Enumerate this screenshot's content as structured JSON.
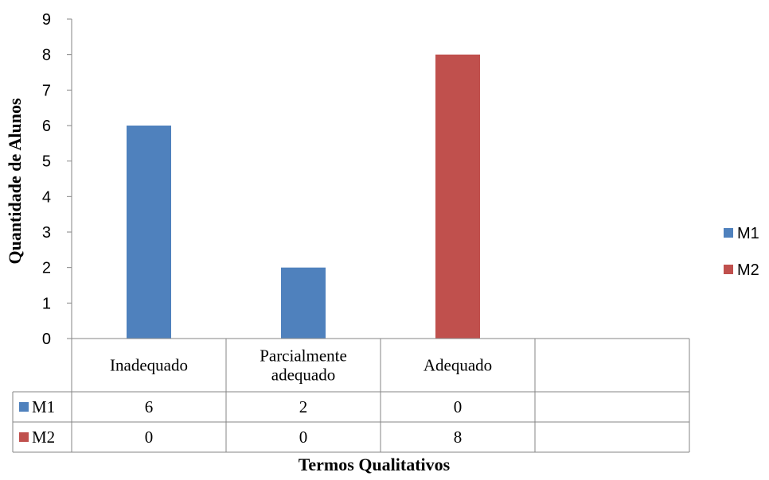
{
  "chart_data": {
    "type": "bar",
    "title": "",
    "xlabel": "Termos Qualitativos",
    "ylabel": "Quantidade de Alunos",
    "categories": [
      "Inadequado",
      "Parcialmente adequado",
      "Adequado",
      ""
    ],
    "category_lines": [
      [
        "Inadequado"
      ],
      [
        "Parcialmente",
        "adequado"
      ],
      [
        "Adequado"
      ],
      []
    ],
    "series": [
      {
        "name": "M1",
        "values": [
          6,
          2,
          0,
          null
        ],
        "color": "#4f81bd"
      },
      {
        "name": "M2",
        "values": [
          0,
          0,
          8,
          null
        ],
        "color": "#c0504d"
      }
    ],
    "ylim": [
      0,
      9
    ],
    "yticks": [
      0,
      1,
      2,
      3,
      4,
      5,
      6,
      7,
      8,
      9
    ],
    "grid": false,
    "legend": "right",
    "data_table": {
      "rows": [
        {
          "name": "M1",
          "cells": [
            "6",
            "2",
            "0",
            ""
          ]
        },
        {
          "name": "M2",
          "cells": [
            "0",
            "0",
            "8",
            ""
          ]
        }
      ]
    }
  }
}
